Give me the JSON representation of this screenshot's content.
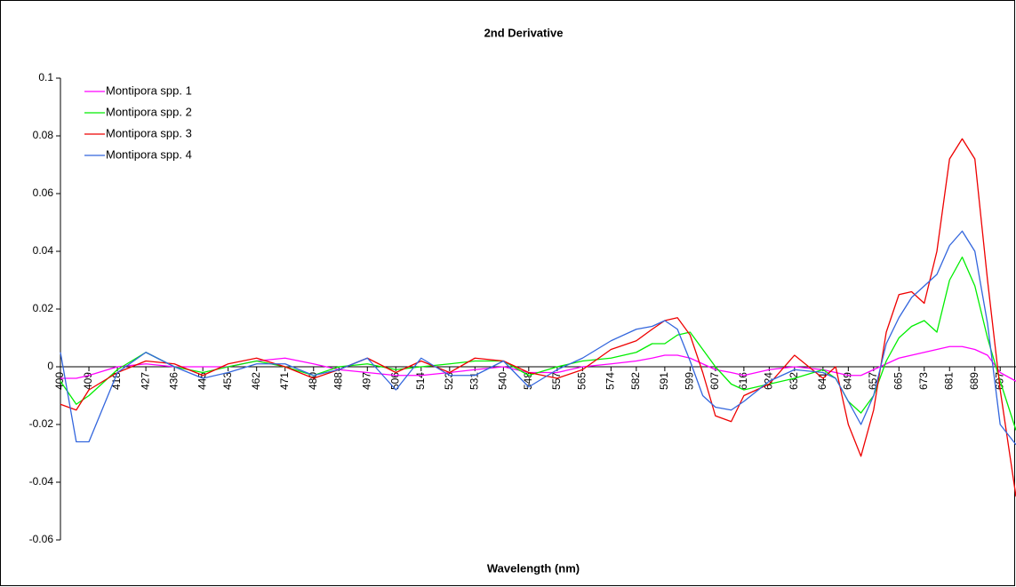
{
  "chart_data": {
    "type": "line",
    "title": "2nd Derivative",
    "xlabel": "Wavelength (nm)",
    "x": [
      400,
      405,
      409,
      418,
      427,
      436,
      445,
      453,
      462,
      471,
      480,
      488,
      497,
      506,
      514,
      523,
      531,
      540,
      548,
      557,
      565,
      574,
      582,
      587,
      591,
      595,
      599,
      603,
      607,
      612,
      616,
      624,
      632,
      641,
      645,
      649,
      653,
      657,
      661,
      665,
      669,
      673,
      677,
      681,
      685,
      689,
      693,
      697,
      702
    ],
    "series": [
      {
        "name": "Montipora spp. 1",
        "color": "#ff00ff",
        "values": [
          -0.004,
          -0.004,
          -0.003,
          0.0,
          0.001,
          0.0,
          0.0,
          0.0,
          0.002,
          0.003,
          0.001,
          -0.001,
          -0.002,
          -0.003,
          -0.003,
          -0.002,
          -0.001,
          0.0,
          -0.002,
          -0.002,
          0.0,
          0.001,
          0.002,
          0.003,
          0.004,
          0.004,
          0.003,
          0.001,
          -0.001,
          -0.002,
          -0.003,
          -0.001,
          0.0,
          -0.001,
          -0.002,
          -0.003,
          -0.003,
          -0.001,
          0.001,
          0.003,
          0.004,
          0.005,
          0.006,
          0.007,
          0.007,
          0.006,
          0.004,
          -0.002,
          -0.005
        ]
      },
      {
        "name": "Montipora spp. 2",
        "color": "#00ee00",
        "values": [
          -0.005,
          -0.013,
          -0.01,
          -0.001,
          0.005,
          0.0,
          -0.002,
          0.0,
          0.002,
          0.0,
          -0.003,
          0.0,
          0.001,
          -0.001,
          0.0,
          0.001,
          0.002,
          0.002,
          -0.003,
          0.0,
          0.002,
          0.003,
          0.005,
          0.008,
          0.008,
          0.011,
          0.012,
          0.006,
          0.0,
          -0.006,
          -0.008,
          -0.006,
          -0.004,
          -0.001,
          -0.004,
          -0.012,
          -0.016,
          -0.01,
          0.002,
          0.01,
          0.014,
          0.016,
          0.012,
          0.03,
          0.038,
          0.028,
          0.01,
          -0.005,
          -0.022
        ]
      },
      {
        "name": "Montipora spp. 3",
        "color": "#ee0000",
        "values": [
          -0.013,
          -0.015,
          -0.008,
          -0.002,
          0.002,
          0.001,
          -0.003,
          0.001,
          0.003,
          0.0,
          -0.004,
          -0.001,
          0.003,
          -0.002,
          0.002,
          -0.002,
          0.003,
          0.002,
          -0.002,
          -0.004,
          -0.001,
          0.006,
          0.009,
          0.013,
          0.016,
          0.017,
          0.011,
          -0.002,
          -0.017,
          -0.019,
          -0.01,
          -0.006,
          0.004,
          -0.004,
          0.0,
          -0.02,
          -0.031,
          -0.015,
          0.012,
          0.025,
          0.026,
          0.022,
          0.04,
          0.072,
          0.079,
          0.072,
          0.03,
          -0.008,
          -0.045
        ]
      },
      {
        "name": "Montipora spp. 4",
        "color": "#3366dd",
        "values": [
          0.005,
          -0.026,
          -0.026,
          -0.002,
          0.005,
          0.0,
          -0.004,
          -0.002,
          0.001,
          0.001,
          -0.003,
          -0.001,
          0.003,
          -0.008,
          0.003,
          -0.003,
          -0.003,
          0.002,
          -0.007,
          -0.001,
          0.003,
          0.009,
          0.013,
          0.014,
          0.016,
          0.013,
          0.002,
          -0.01,
          -0.014,
          -0.015,
          -0.012,
          -0.005,
          -0.001,
          -0.002,
          -0.004,
          -0.012,
          -0.02,
          -0.01,
          0.008,
          0.017,
          0.024,
          0.028,
          0.032,
          0.042,
          0.047,
          0.04,
          0.015,
          -0.02,
          -0.027
        ]
      }
    ],
    "xlim": [
      400,
      702
    ],
    "xticks": [
      400,
      409,
      418,
      427,
      436,
      445,
      453,
      462,
      471,
      480,
      488,
      497,
      506,
      514,
      523,
      531,
      540,
      548,
      557,
      565,
      574,
      582,
      591,
      599,
      607,
      616,
      624,
      632,
      641,
      649,
      657,
      665,
      673,
      681,
      689,
      697
    ],
    "ylim": [
      -0.06,
      0.1
    ],
    "yticks": [
      0.1,
      0.08,
      0.06,
      0.04,
      0.02,
      0,
      -0.02,
      -0.04,
      -0.06
    ],
    "legend": "upper left"
  }
}
